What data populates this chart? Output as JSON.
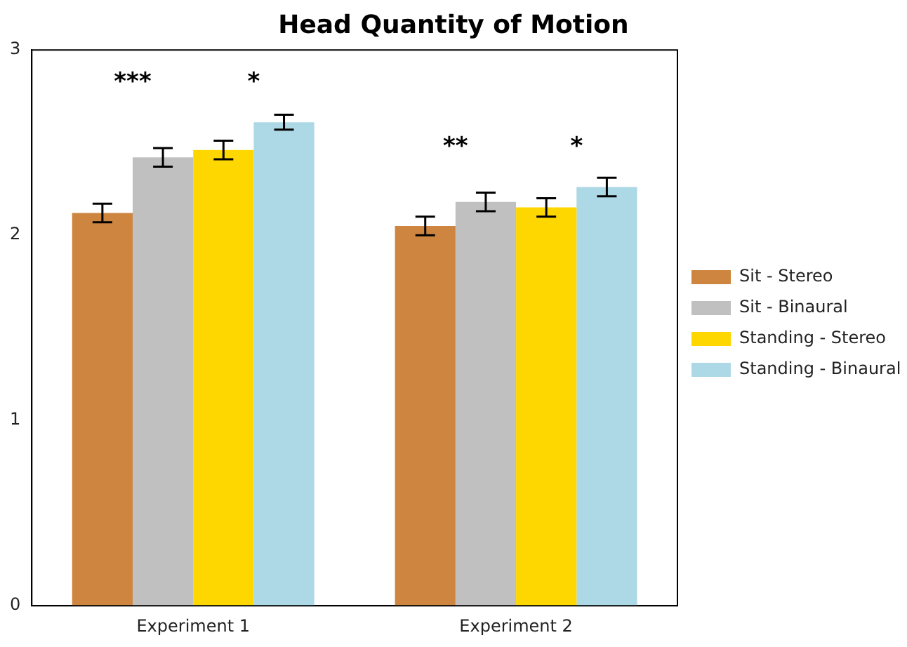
{
  "chart_data": {
    "type": "bar",
    "title": "Head Quantity of Motion",
    "categories": [
      "Experiment 1",
      "Experiment 2"
    ],
    "series": [
      {
        "name": "Sit - Stereo",
        "color": "#cd853f",
        "values": [
          2.12,
          2.05
        ],
        "errors": [
          0.05,
          0.05
        ]
      },
      {
        "name": "Sit - Binaural",
        "color": "#c0c0c0",
        "values": [
          2.42,
          2.18
        ],
        "errors": [
          0.05,
          0.05
        ]
      },
      {
        "name": "Standing - Stereo",
        "color": "#ffd700",
        "values": [
          2.46,
          2.15
        ],
        "errors": [
          0.05,
          0.05
        ]
      },
      {
        "name": "Standing - Binaural",
        "color": "#add8e6",
        "values": [
          2.61,
          2.26
        ],
        "errors": [
          0.04,
          0.05
        ]
      }
    ],
    "ylim": [
      0,
      3
    ],
    "yticks": [
      0,
      1,
      2,
      3
    ],
    "grid": false,
    "legend": "right",
    "annotations": [
      "***",
      "*",
      "**",
      "*"
    ]
  }
}
